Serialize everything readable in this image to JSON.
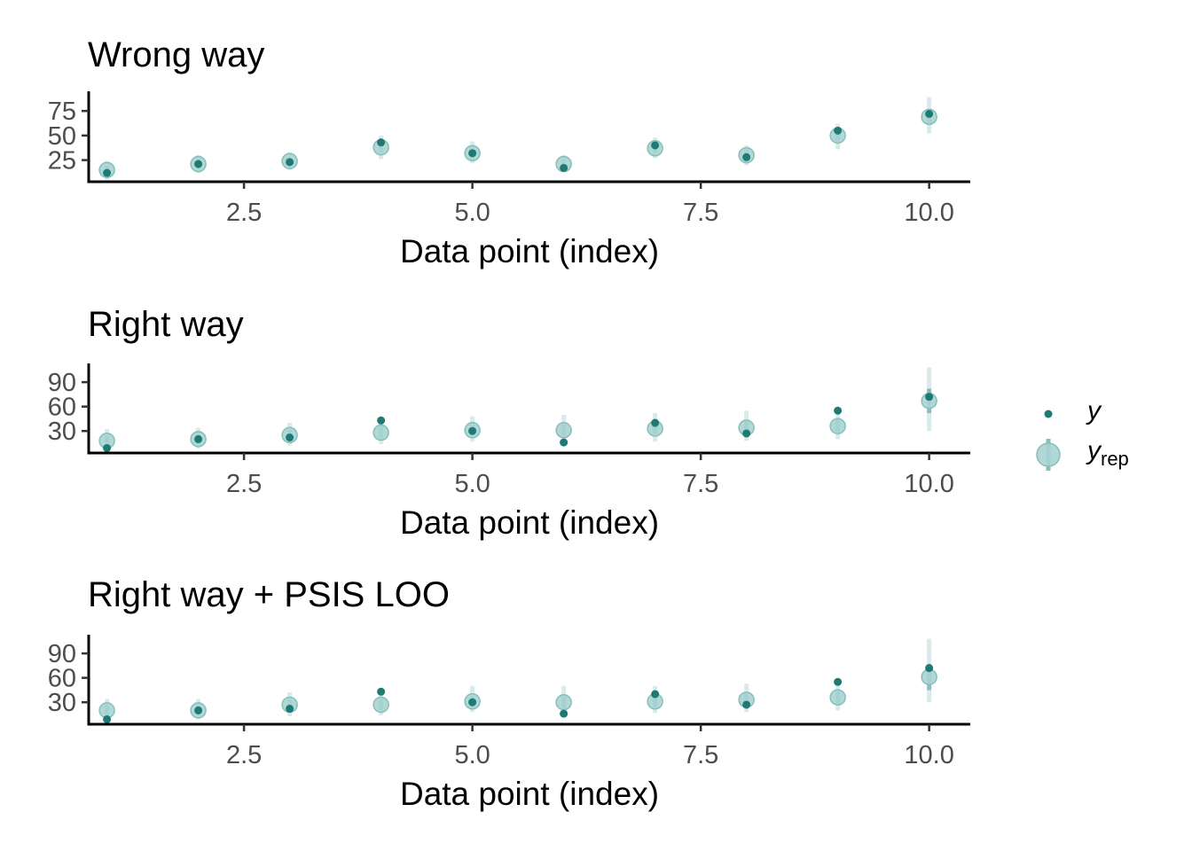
{
  "colors": {
    "y_point": "#1f7a76",
    "yrep_point": "#a8d4d2",
    "yrep_point_stroke": "#86bfbc",
    "yrep_inner_interval": "#86bfbc",
    "yrep_outer_interval": "#d8ebea",
    "axis": "#000000",
    "tick_text": "#4d4d4d"
  },
  "legend": {
    "y_label": "y",
    "yrep_label": "y",
    "yrep_sub": "rep"
  },
  "chart_data": [
    {
      "type": "scatter",
      "title": "Wrong way",
      "xlabel": "Data point (index)",
      "ylabel": "",
      "xlim": [
        0.8,
        10.45
      ],
      "ylim": [
        3,
        95
      ],
      "xticks": [
        2.5,
        5.0,
        7.5,
        10.0
      ],
      "xtick_labels": [
        "2.5",
        "5.0",
        "7.5",
        "10.0"
      ],
      "yticks": [
        25,
        50,
        75
      ],
      "ytick_labels": [
        "25",
        "50",
        "75"
      ],
      "grid": false,
      "legend_position": "right",
      "x": [
        1,
        2,
        3,
        4,
        5,
        6,
        7,
        8,
        9,
        10
      ],
      "series": [
        {
          "name": "y",
          "values": [
            12,
            21,
            23,
            43,
            32,
            17,
            40,
            28,
            55,
            72
          ]
        },
        {
          "name": "yrep",
          "values": [
            15,
            21,
            24,
            38,
            32,
            21,
            37,
            30,
            50,
            69
          ],
          "inner_low": [
            10,
            17,
            20,
            33,
            28,
            17,
            33,
            25,
            45,
            62
          ],
          "inner_high": [
            19,
            26,
            28,
            43,
            37,
            25,
            41,
            35,
            56,
            76
          ],
          "outer_low": [
            5,
            12,
            15,
            26,
            22,
            13,
            27,
            20,
            36,
            52
          ],
          "outer_high": [
            24,
            30,
            33,
            50,
            44,
            30,
            48,
            40,
            62,
            89
          ]
        }
      ]
    },
    {
      "type": "scatter",
      "title": "Right way",
      "xlabel": "Data point (index)",
      "ylabel": "",
      "xlim": [
        0.8,
        10.45
      ],
      "ylim": [
        3,
        113
      ],
      "xticks": [
        2.5,
        5.0,
        7.5,
        10.0
      ],
      "xtick_labels": [
        "2.5",
        "5.0",
        "7.5",
        "10.0"
      ],
      "yticks": [
        30,
        60,
        90
      ],
      "ytick_labels": [
        "30",
        "60",
        "90"
      ],
      "grid": false,
      "legend_position": "right",
      "x": [
        1,
        2,
        3,
        4,
        5,
        6,
        7,
        8,
        9,
        10
      ],
      "series": [
        {
          "name": "y",
          "values": [
            9,
            20,
            22,
            43,
            30,
            16,
            40,
            27,
            55,
            72
          ]
        },
        {
          "name": "yrep",
          "values": [
            18,
            20,
            25,
            28,
            31,
            31,
            33,
            34,
            36,
            67
          ],
          "inner_low": [
            12,
            15,
            19,
            22,
            25,
            24,
            26,
            27,
            29,
            52
          ],
          "inner_high": [
            24,
            26,
            31,
            34,
            37,
            38,
            40,
            42,
            44,
            82
          ],
          "outer_low": [
            5,
            9,
            12,
            14,
            17,
            16,
            17,
            18,
            20,
            30
          ],
          "outer_high": [
            32,
            34,
            40,
            44,
            48,
            50,
            52,
            55,
            58,
            108
          ]
        }
      ]
    },
    {
      "type": "scatter",
      "title": "Right way + PSIS LOO",
      "xlabel": "Data point (index)",
      "ylabel": "",
      "xlim": [
        0.8,
        10.45
      ],
      "ylim": [
        3,
        113
      ],
      "xticks": [
        2.5,
        5.0,
        7.5,
        10.0
      ],
      "xtick_labels": [
        "2.5",
        "5.0",
        "7.5",
        "10.0"
      ],
      "yticks": [
        30,
        60,
        90
      ],
      "ytick_labels": [
        "30",
        "60",
        "90"
      ],
      "grid": false,
      "legend_position": "right",
      "x": [
        1,
        2,
        3,
        4,
        5,
        6,
        7,
        8,
        9,
        10
      ],
      "series": [
        {
          "name": "y",
          "values": [
            9,
            20,
            22,
            43,
            30,
            16,
            40,
            27,
            55,
            72
          ]
        },
        {
          "name": "yrep",
          "values": [
            20,
            20,
            27,
            27,
            31,
            30,
            31,
            33,
            36,
            61
          ],
          "inner_low": [
            14,
            15,
            21,
            21,
            25,
            23,
            24,
            26,
            29,
            45
          ],
          "inner_high": [
            26,
            26,
            33,
            33,
            37,
            37,
            38,
            40,
            43,
            77
          ],
          "outer_low": [
            6,
            9,
            13,
            14,
            18,
            16,
            17,
            18,
            20,
            30
          ],
          "outer_high": [
            34,
            34,
            42,
            42,
            50,
            50,
            50,
            53,
            55,
            108
          ]
        }
      ]
    }
  ]
}
